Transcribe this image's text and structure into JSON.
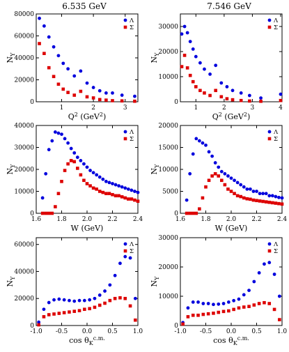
{
  "column_titles": [
    "6.535 GeV",
    "7.546 GeV"
  ],
  "legend": {
    "lambda": "Λ",
    "sigma": "Σ"
  },
  "colors": {
    "lambda": "#0000dd",
    "sigma": "#dd0000"
  },
  "chart_data": [
    {
      "type": "scatter",
      "column": 0,
      "row": 0,
      "ylabel": "N_Y",
      "xlabel": "Q^2 (GeV^2)",
      "xlim": [
        0.2,
        3.4
      ],
      "ylim": [
        0,
        80000
      ],
      "xticks": [
        1,
        2,
        3
      ],
      "yticks": [
        0,
        20000,
        40000,
        60000,
        80000
      ],
      "legend_placement": "top-right",
      "series": [
        {
          "name": "Λ",
          "x": [
            0.3,
            0.45,
            0.6,
            0.75,
            0.9,
            1.05,
            1.2,
            1.4,
            1.6,
            1.8,
            2.0,
            2.2,
            2.4,
            2.6,
            2.9,
            3.3
          ],
          "y": [
            76000,
            69000,
            59000,
            50000,
            42000,
            35000,
            30000,
            23500,
            28000,
            17000,
            13000,
            10000,
            8000,
            8000,
            6000,
            5000
          ]
        },
        {
          "name": "Σ",
          "x": [
            0.3,
            0.45,
            0.6,
            0.75,
            0.9,
            1.05,
            1.2,
            1.4,
            1.6,
            1.8,
            2.0,
            2.2,
            2.4,
            2.6,
            2.9,
            3.3
          ],
          "y": [
            53000,
            44000,
            31000,
            23000,
            16000,
            11500,
            8500,
            6000,
            9500,
            4500,
            3500,
            2000,
            1500,
            1000,
            800,
            500
          ]
        }
      ]
    },
    {
      "type": "scatter",
      "column": 1,
      "row": 0,
      "ylabel": "N_Y",
      "xlabel": "Q^2 (GeV^2)",
      "xlim": [
        0.45,
        4.05
      ],
      "ylim": [
        0,
        35000
      ],
      "xticks": [
        1,
        2,
        3,
        4
      ],
      "yticks": [
        0,
        10000,
        20000,
        30000
      ],
      "legend_placement": "top-right",
      "series": [
        {
          "name": "Λ",
          "x": [
            0.5,
            0.6,
            0.7,
            0.8,
            0.9,
            1.0,
            1.15,
            1.3,
            1.5,
            1.7,
            1.9,
            2.1,
            2.3,
            2.6,
            2.9,
            3.3,
            4.0
          ],
          "y": [
            27000,
            30000,
            27500,
            24000,
            21000,
            18000,
            15500,
            13000,
            11000,
            14500,
            7500,
            6000,
            4500,
            3500,
            2500,
            1500,
            3000
          ]
        },
        {
          "name": "Σ",
          "x": [
            0.5,
            0.6,
            0.7,
            0.8,
            0.9,
            1.0,
            1.15,
            1.3,
            1.5,
            1.7,
            1.9,
            2.1,
            2.3,
            2.6,
            2.9,
            3.3,
            4.0
          ],
          "y": [
            14000,
            18500,
            13500,
            10500,
            8000,
            6000,
            4500,
            3500,
            2500,
            4500,
            2000,
            1200,
            800,
            500,
            300,
            200,
            500
          ]
        }
      ]
    },
    {
      "type": "scatter",
      "column": 0,
      "row": 1,
      "ylabel": "N_Y",
      "xlabel": "W (GeV)",
      "xlim": [
        1.6,
        2.4
      ],
      "ylim": [
        0,
        40000
      ],
      "xticks": [
        1.6,
        1.8,
        2.0,
        2.2,
        2.4
      ],
      "yticks": [
        0,
        10000,
        20000,
        30000,
        40000
      ],
      "legend_placement": "top-right",
      "series": [
        {
          "name": "Λ",
          "x": [
            1.65,
            1.675,
            1.7,
            1.725,
            1.75,
            1.775,
            1.8,
            1.825,
            1.85,
            1.875,
            1.9,
            1.925,
            1.95,
            1.975,
            2.0,
            2.025,
            2.05,
            2.075,
            2.1,
            2.125,
            2.15,
            2.175,
            2.2,
            2.225,
            2.25,
            2.275,
            2.3,
            2.325,
            2.35,
            2.375,
            2.4
          ],
          "y": [
            7000,
            18000,
            29000,
            33000,
            37000,
            36500,
            36000,
            34000,
            32000,
            29500,
            27500,
            25500,
            24000,
            22500,
            21000,
            19500,
            18500,
            17500,
            16500,
            15500,
            14500,
            14000,
            13500,
            13000,
            12500,
            12000,
            11500,
            11000,
            10500,
            10000,
            9500
          ]
        },
        {
          "name": "Σ",
          "x": [
            1.65,
            1.675,
            1.7,
            1.725,
            1.75,
            1.775,
            1.8,
            1.825,
            1.85,
            1.875,
            1.9,
            1.925,
            1.95,
            1.975,
            2.0,
            2.025,
            2.05,
            2.075,
            2.1,
            2.125,
            2.15,
            2.175,
            2.2,
            2.225,
            2.25,
            2.275,
            2.3,
            2.325,
            2.35,
            2.375,
            2.4
          ],
          "y": [
            0,
            0,
            0,
            0,
            3000,
            9000,
            14500,
            19500,
            22500,
            24000,
            23500,
            20500,
            17500,
            15000,
            13500,
            12500,
            11500,
            11000,
            10000,
            9500,
            9000,
            9000,
            8500,
            8000,
            8000,
            7500,
            7000,
            6500,
            6500,
            6000,
            5500
          ]
        }
      ]
    },
    {
      "type": "scatter",
      "column": 1,
      "row": 1,
      "ylabel": "N_Y",
      "xlabel": "W (GeV)",
      "xlim": [
        1.6,
        2.4
      ],
      "ylim": [
        0,
        20000
      ],
      "xticks": [
        1.6,
        1.8,
        2.0,
        2.2,
        2.4
      ],
      "yticks": [
        0,
        5000,
        10000,
        15000,
        20000
      ],
      "legend_placement": "top-right",
      "series": [
        {
          "name": "Λ",
          "x": [
            1.65,
            1.675,
            1.7,
            1.725,
            1.75,
            1.775,
            1.8,
            1.825,
            1.85,
            1.875,
            1.9,
            1.925,
            1.95,
            1.975,
            2.0,
            2.025,
            2.05,
            2.075,
            2.1,
            2.125,
            2.15,
            2.175,
            2.2,
            2.225,
            2.25,
            2.275,
            2.3,
            2.325,
            2.35,
            2.375,
            2.4
          ],
          "y": [
            3000,
            9000,
            13500,
            17000,
            16500,
            16000,
            15500,
            14000,
            13000,
            11500,
            10500,
            9500,
            9000,
            8500,
            8000,
            7500,
            7000,
            6500,
            6000,
            5500,
            5500,
            5000,
            5000,
            4500,
            4500,
            4500,
            4000,
            4000,
            3800,
            3600,
            3500
          ]
        },
        {
          "name": "Σ",
          "x": [
            1.65,
            1.675,
            1.7,
            1.725,
            1.75,
            1.775,
            1.8,
            1.825,
            1.85,
            1.875,
            1.9,
            1.925,
            1.95,
            1.975,
            2.0,
            2.025,
            2.05,
            2.075,
            2.1,
            2.125,
            2.15,
            2.175,
            2.2,
            2.225,
            2.25,
            2.275,
            2.3,
            2.325,
            2.35,
            2.375,
            2.4
          ],
          "y": [
            0,
            0,
            0,
            0,
            1000,
            3500,
            6000,
            7500,
            8500,
            9000,
            8500,
            7500,
            6500,
            5500,
            5000,
            4500,
            4000,
            3800,
            3500,
            3300,
            3200,
            3000,
            2900,
            2800,
            2700,
            2600,
            2500,
            2400,
            2300,
            2200,
            2100
          ]
        }
      ]
    },
    {
      "type": "scatter",
      "column": 0,
      "row": 2,
      "ylabel": "N_Y",
      "xlabel": "cos θ_K^c.m.",
      "xlim": [
        -1.0,
        1.0
      ],
      "ylim": [
        0,
        65000
      ],
      "xticks": [
        -1.0,
        -0.5,
        0.0,
        0.5,
        1.0
      ],
      "yticks": [
        0,
        20000,
        40000,
        60000
      ],
      "legend_placement": "top-right",
      "series": [
        {
          "name": "Λ",
          "x": [
            -0.95,
            -0.85,
            -0.75,
            -0.65,
            -0.55,
            -0.45,
            -0.35,
            -0.25,
            -0.15,
            -0.05,
            0.05,
            0.15,
            0.25,
            0.35,
            0.45,
            0.55,
            0.65,
            0.75,
            0.85,
            0.95
          ],
          "y": [
            2500,
            12000,
            17000,
            19000,
            19500,
            19000,
            18500,
            18000,
            18500,
            18500,
            19000,
            20000,
            22500,
            25500,
            30000,
            37000,
            46000,
            51000,
            50000,
            20000
          ]
        },
        {
          "name": "Σ",
          "x": [
            -0.95,
            -0.85,
            -0.75,
            -0.65,
            -0.55,
            -0.45,
            -0.35,
            -0.25,
            -0.15,
            -0.05,
            0.05,
            0.15,
            0.25,
            0.35,
            0.45,
            0.55,
            0.65,
            0.75,
            0.85,
            0.95
          ],
          "y": [
            500,
            6500,
            8000,
            8500,
            9000,
            9500,
            10000,
            10500,
            11000,
            12000,
            12500,
            13500,
            15000,
            16500,
            18500,
            20000,
            20500,
            20000,
            14500,
            4000
          ]
        }
      ]
    },
    {
      "type": "scatter",
      "column": 1,
      "row": 2,
      "ylabel": "N_Y",
      "xlabel": "cos θ_K^c.m.",
      "xlim": [
        -1.0,
        1.0
      ],
      "ylim": [
        0,
        30000
      ],
      "xticks": [
        -1.0,
        -0.5,
        0.0,
        0.5,
        1.0
      ],
      "yticks": [
        0,
        10000,
        20000,
        30000
      ],
      "legend_placement": "top-right",
      "series": [
        {
          "name": "Λ",
          "x": [
            -0.95,
            -0.85,
            -0.75,
            -0.65,
            -0.55,
            -0.45,
            -0.35,
            -0.25,
            -0.15,
            -0.05,
            0.05,
            0.15,
            0.25,
            0.35,
            0.45,
            0.55,
            0.65,
            0.75,
            0.85,
            0.95
          ],
          "y": [
            1000,
            6000,
            8000,
            8000,
            7500,
            7500,
            7200,
            7300,
            7500,
            8000,
            8500,
            9000,
            10500,
            12000,
            15000,
            18000,
            21000,
            21500,
            17500,
            10000
          ]
        },
        {
          "name": "Σ",
          "x": [
            -0.95,
            -0.85,
            -0.75,
            -0.65,
            -0.55,
            -0.45,
            -0.35,
            -0.25,
            -0.15,
            -0.05,
            0.05,
            0.15,
            0.25,
            0.35,
            0.45,
            0.55,
            0.65,
            0.75,
            0.85,
            0.95
          ],
          "y": [
            500,
            3000,
            3500,
            3500,
            3800,
            4000,
            4200,
            4500,
            4800,
            5000,
            5500,
            6000,
            6300,
            6500,
            7000,
            7500,
            7800,
            7500,
            5500,
            2000
          ]
        }
      ]
    }
  ]
}
